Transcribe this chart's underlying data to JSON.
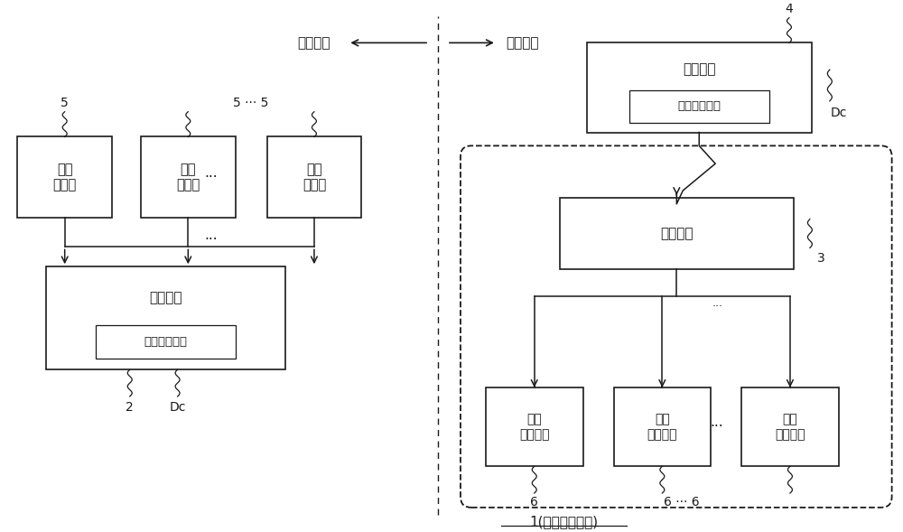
{
  "bg_color": "#ffffff",
  "line_color": "#1a1a1a",
  "figsize": [
    10.0,
    5.89
  ],
  "dpi": 100,
  "xlim": [
    0,
    10
  ],
  "ylim": [
    0,
    5.89
  ],
  "label_record_env": "记录环境",
  "label_repro_env": "再现环境",
  "sensor_text": "触觉\n传感器",
  "encoder_text": "编码设备",
  "enc_data_text": "触觉编码数据",
  "reproducer_text": "再现设备",
  "rep_data_text": "触觉编码数据",
  "decoder_text": "触码设备",
  "display_text": "触觉\n呈现设备",
  "num_2": "2",
  "num_Dc": "Dc",
  "num_3": "3",
  "num_4": "4",
  "num_5": "5",
  "num_5dots5": "5 ··· 5",
  "num_6": "6",
  "num_6dots6": "6 ··· 6",
  "dots3": "···",
  "bottom_label": "1(触觉再现系统)"
}
